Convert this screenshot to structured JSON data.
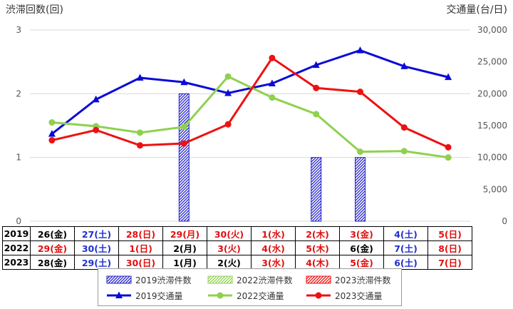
{
  "chart_data": {
    "type": "bar+line",
    "left_axis_label": "渋滞回数(回)",
    "right_axis_label": "交通量(台/日)",
    "left_ticks": [
      "0",
      "1",
      "2",
      "3"
    ],
    "right_ticks": [
      "0",
      "5,000",
      "10,000",
      "15,000",
      "20,000",
      "25,000",
      "30,000"
    ],
    "left_range": [
      0,
      3
    ],
    "right_range": [
      0,
      30000
    ],
    "grid": "horizontal",
    "legend_position": "bottom",
    "bars": [
      {
        "name": "2019渋滞件数",
        "color": "#2222cc",
        "values": [
          0,
          0,
          0,
          2,
          0,
          0,
          1,
          1,
          0,
          0
        ]
      },
      {
        "name": "2022渋滞件数",
        "color": "#8fd14f",
        "values": [
          0,
          0,
          0,
          0,
          0,
          0,
          0,
          0,
          0,
          0
        ]
      },
      {
        "name": "2023渋滞件数",
        "color": "#ee1111",
        "values": [
          0,
          0,
          0,
          0,
          0,
          0,
          0,
          0,
          0,
          0
        ]
      }
    ],
    "lines": [
      {
        "name": "2019交通量",
        "color": "#0a0ad6",
        "marker": "triangle",
        "values": [
          13700,
          19100,
          22500,
          21800,
          20100,
          21600,
          24500,
          26800,
          24300,
          22600
        ]
      },
      {
        "name": "2022交通量",
        "color": "#8fd14f",
        "marker": "circle",
        "values": [
          15500,
          14900,
          13900,
          14800,
          22700,
          19400,
          16800,
          10900,
          11000,
          10000
        ]
      },
      {
        "name": "2023交通量",
        "color": "#ee1111",
        "marker": "circle",
        "values": [
          12700,
          14300,
          11900,
          12200,
          15200,
          25600,
          20900,
          20300,
          14700,
          11600
        ]
      }
    ]
  },
  "date_rows": [
    {
      "year": "2019",
      "cells": [
        {
          "text": "26(金)",
          "color": "#000000"
        },
        {
          "text": "27(土)",
          "color": "#1f2fd0"
        },
        {
          "text": "28(日)",
          "color": "#e01010"
        },
        {
          "text": "29(月)",
          "color": "#e01010"
        },
        {
          "text": "30(火)",
          "color": "#e01010"
        },
        {
          "text": "1(水)",
          "color": "#e01010"
        },
        {
          "text": "2(木)",
          "color": "#e01010"
        },
        {
          "text": "3(金)",
          "color": "#e01010"
        },
        {
          "text": "4(土)",
          "color": "#1f2fd0"
        },
        {
          "text": "5(日)",
          "color": "#e01010"
        }
      ]
    },
    {
      "year": "2022",
      "cells": [
        {
          "text": "29(金)",
          "color": "#e01010"
        },
        {
          "text": "30(土)",
          "color": "#1f2fd0"
        },
        {
          "text": "1(日)",
          "color": "#e01010"
        },
        {
          "text": "2(月)",
          "color": "#000000"
        },
        {
          "text": "3(火)",
          "color": "#e01010"
        },
        {
          "text": "4(水)",
          "color": "#e01010"
        },
        {
          "text": "5(木)",
          "color": "#e01010"
        },
        {
          "text": "6(金)",
          "color": "#000000"
        },
        {
          "text": "7(土)",
          "color": "#1f2fd0"
        },
        {
          "text": "8(日)",
          "color": "#e01010"
        }
      ]
    },
    {
      "year": "2023",
      "cells": [
        {
          "text": "28(金)",
          "color": "#000000"
        },
        {
          "text": "29(土)",
          "color": "#1f2fd0"
        },
        {
          "text": "30(日)",
          "color": "#e01010"
        },
        {
          "text": "1(月)",
          "color": "#000000"
        },
        {
          "text": "2(火)",
          "color": "#000000"
        },
        {
          "text": "3(水)",
          "color": "#e01010"
        },
        {
          "text": "4(木)",
          "color": "#e01010"
        },
        {
          "text": "5(金)",
          "color": "#e01010"
        },
        {
          "text": "6(土)",
          "color": "#1f2fd0"
        },
        {
          "text": "7(日)",
          "color": "#e01010"
        }
      ]
    }
  ],
  "legend": [
    {
      "label": "2019渋滞件数",
      "kind": "hatch",
      "color": "#2222cc"
    },
    {
      "label": "2022渋滞件数",
      "kind": "hatch",
      "color": "#8fd14f"
    },
    {
      "label": "2023渋滞件数",
      "kind": "hatch",
      "color": "#ee1111"
    },
    {
      "label": "2019交通量",
      "kind": "line-triangle",
      "color": "#0a0ad6"
    },
    {
      "label": "2022交通量",
      "kind": "line-circle",
      "color": "#8fd14f"
    },
    {
      "label": "2023交通量",
      "kind": "line-circle",
      "color": "#ee1111"
    }
  ]
}
